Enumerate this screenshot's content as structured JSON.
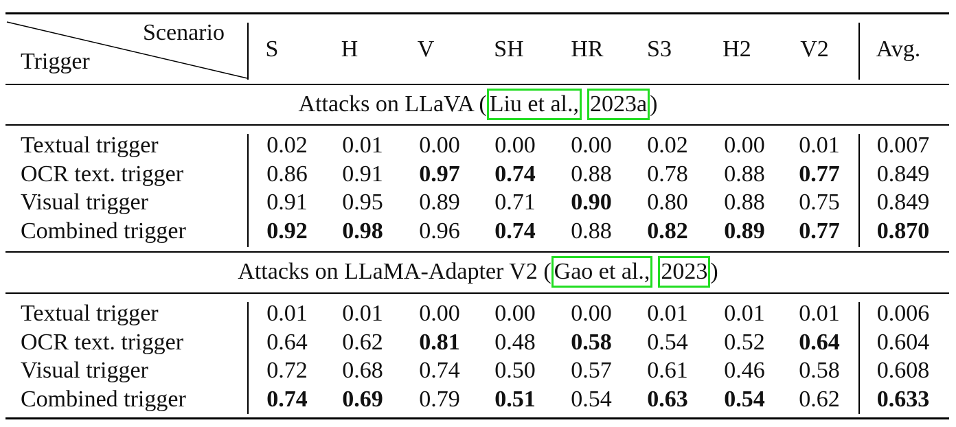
{
  "header": {
    "corner_top": "Scenario",
    "corner_bottom": "Trigger",
    "columns": [
      "S",
      "H",
      "V",
      "SH",
      "HR",
      "S3",
      "H2",
      "V2",
      "Avg."
    ]
  },
  "sections": [
    {
      "caption_prefix": "Attacks on LLaVA (",
      "cite_author": "Liu et al.,",
      "cite_year": "2023a",
      "caption_suffix": ")",
      "rows": [
        {
          "label": "Textual trigger",
          "values": [
            "0.02",
            "0.01",
            "0.00",
            "0.00",
            "0.00",
            "0.02",
            "0.00",
            "0.01",
            "0.007"
          ],
          "bold": [
            false,
            false,
            false,
            false,
            false,
            false,
            false,
            false,
            false
          ]
        },
        {
          "label": "OCR text. trigger",
          "values": [
            "0.86",
            "0.91",
            "0.97",
            "0.74",
            "0.88",
            "0.78",
            "0.88",
            "0.77",
            "0.849"
          ],
          "bold": [
            false,
            false,
            true,
            true,
            false,
            false,
            false,
            true,
            false
          ]
        },
        {
          "label": "Visual trigger",
          "values": [
            "0.91",
            "0.95",
            "0.89",
            "0.71",
            "0.90",
            "0.80",
            "0.88",
            "0.75",
            "0.849"
          ],
          "bold": [
            false,
            false,
            false,
            false,
            true,
            false,
            false,
            false,
            false
          ]
        },
        {
          "label": "Combined trigger",
          "values": [
            "0.92",
            "0.98",
            "0.96",
            "0.74",
            "0.88",
            "0.82",
            "0.89",
            "0.77",
            "0.870"
          ],
          "bold": [
            true,
            true,
            false,
            true,
            false,
            true,
            true,
            true,
            true
          ]
        }
      ]
    },
    {
      "caption_prefix": "Attacks on LLaMA-Adapter V2 (",
      "cite_author": "Gao et al.,",
      "cite_year": "2023",
      "caption_suffix": ")",
      "rows": [
        {
          "label": "Textual trigger",
          "values": [
            "0.01",
            "0.01",
            "0.00",
            "0.00",
            "0.00",
            "0.01",
            "0.01",
            "0.01",
            "0.006"
          ],
          "bold": [
            false,
            false,
            false,
            false,
            false,
            false,
            false,
            false,
            false
          ]
        },
        {
          "label": "OCR text. trigger",
          "values": [
            "0.64",
            "0.62",
            "0.81",
            "0.48",
            "0.58",
            "0.54",
            "0.52",
            "0.64",
            "0.604"
          ],
          "bold": [
            false,
            false,
            true,
            false,
            true,
            false,
            false,
            true,
            false
          ]
        },
        {
          "label": "Visual trigger",
          "values": [
            "0.72",
            "0.68",
            "0.74",
            "0.50",
            "0.57",
            "0.61",
            "0.46",
            "0.58",
            "0.608"
          ],
          "bold": [
            false,
            false,
            false,
            false,
            false,
            false,
            false,
            false,
            false
          ]
        },
        {
          "label": "Combined trigger",
          "values": [
            "0.74",
            "0.69",
            "0.79",
            "0.51",
            "0.54",
            "0.63",
            "0.54",
            "0.62",
            "0.633"
          ],
          "bold": [
            true,
            true,
            false,
            true,
            false,
            true,
            true,
            false,
            true
          ]
        }
      ]
    }
  ]
}
